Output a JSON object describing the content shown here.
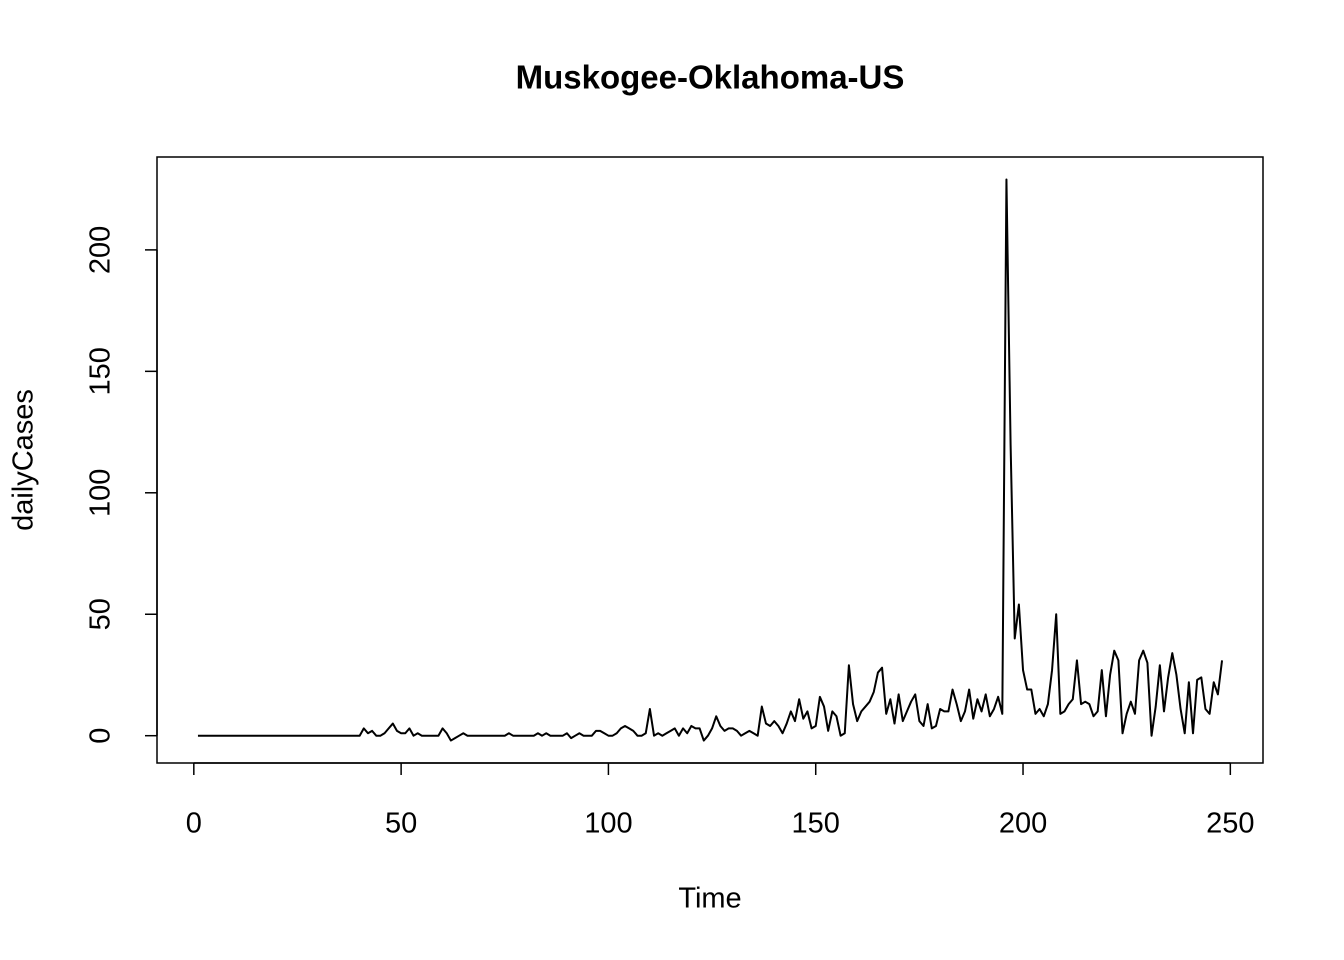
{
  "chart_data": {
    "type": "line",
    "title": "Muskogee-Oklahoma-US",
    "x_label": "Time",
    "y_label": "dailyCases",
    "x": [
      1,
      2,
      3,
      4,
      5,
      6,
      7,
      8,
      9,
      10,
      11,
      12,
      13,
      14,
      15,
      16,
      17,
      18,
      19,
      20,
      21,
      22,
      23,
      24,
      25,
      26,
      27,
      28,
      29,
      30,
      31,
      32,
      33,
      34,
      35,
      36,
      37,
      38,
      39,
      40,
      41,
      42,
      43,
      44,
      45,
      46,
      47,
      48,
      49,
      50,
      51,
      52,
      53,
      54,
      55,
      56,
      57,
      58,
      59,
      60,
      61,
      62,
      63,
      64,
      65,
      66,
      67,
      68,
      69,
      70,
      71,
      72,
      73,
      74,
      75,
      76,
      77,
      78,
      79,
      80,
      81,
      82,
      83,
      84,
      85,
      86,
      87,
      88,
      89,
      90,
      91,
      92,
      93,
      94,
      95,
      96,
      97,
      98,
      99,
      100,
      101,
      102,
      103,
      104,
      105,
      106,
      107,
      108,
      109,
      110,
      111,
      112,
      113,
      114,
      115,
      116,
      117,
      118,
      119,
      120,
      121,
      122,
      123,
      124,
      125,
      126,
      127,
      128,
      129,
      130,
      131,
      132,
      133,
      134,
      135,
      136,
      137,
      138,
      139,
      140,
      141,
      142,
      143,
      144,
      145,
      146,
      147,
      148,
      149,
      150,
      151,
      152,
      153,
      154,
      155,
      156,
      157,
      158,
      159,
      160,
      161,
      162,
      163,
      164,
      165,
      166,
      167,
      168,
      169,
      170,
      171,
      172,
      173,
      174,
      175,
      176,
      177,
      178,
      179,
      180,
      181,
      182,
      183,
      184,
      185,
      186,
      187,
      188,
      189,
      190,
      191,
      192,
      193,
      194,
      195,
      196,
      197,
      198,
      199,
      200,
      201,
      202,
      203,
      204,
      205,
      206,
      207,
      208,
      209,
      210,
      211,
      212,
      213,
      214,
      215,
      216,
      217,
      218,
      219,
      220,
      221,
      222,
      223,
      224,
      225,
      226,
      227,
      228,
      229,
      230,
      231,
      232,
      233,
      234,
      235,
      236,
      237,
      238,
      239,
      240,
      241,
      242,
      243,
      244,
      245,
      246,
      247,
      248
    ],
    "series": [
      {
        "name": "dailyCases",
        "color": "#000000",
        "values": [
          0,
          0,
          0,
          0,
          0,
          0,
          0,
          0,
          0,
          0,
          0,
          0,
          0,
          0,
          0,
          0,
          0,
          0,
          0,
          0,
          0,
          0,
          0,
          0,
          0,
          0,
          0,
          0,
          0,
          0,
          0,
          0,
          0,
          0,
          0,
          0,
          0,
          0,
          0,
          0,
          3,
          1,
          2,
          0,
          0,
          1,
          3,
          5,
          2,
          1,
          1,
          3,
          0,
          1,
          0,
          0,
          0,
          0,
          0,
          3,
          1,
          -2,
          -1,
          0,
          1,
          0,
          0,
          0,
          0,
          0,
          0,
          0,
          0,
          0,
          0,
          1,
          0,
          0,
          0,
          0,
          0,
          0,
          1,
          0,
          1,
          0,
          0,
          0,
          0,
          1,
          -1,
          0,
          1,
          0,
          0,
          0,
          2,
          2,
          1,
          0,
          0,
          1,
          3,
          4,
          3,
          2,
          0,
          0,
          1,
          11,
          0,
          1,
          0,
          1,
          2,
          3,
          0,
          3,
          1,
          4,
          3,
          3,
          -2,
          0,
          3,
          8,
          4,
          2,
          3,
          3,
          2,
          0,
          1,
          2,
          1,
          0,
          12,
          5,
          4,
          6,
          4,
          1,
          5,
          10,
          6,
          15,
          7,
          10,
          3,
          4,
          16,
          12,
          2,
          10,
          8,
          0,
          1,
          29,
          13,
          6,
          10,
          12,
          14,
          18,
          26,
          28,
          9,
          15,
          5,
          17,
          6,
          10,
          14,
          17,
          6,
          4,
          13,
          3,
          4,
          11,
          10,
          10,
          19,
          13,
          6,
          10,
          19,
          7,
          15,
          10,
          17,
          8,
          11,
          16,
          9,
          229,
          120,
          40,
          54,
          27,
          19,
          19,
          9,
          11,
          8,
          13,
          27,
          50,
          9,
          10,
          13,
          15,
          31,
          13,
          14,
          13,
          8,
          10,
          27,
          8,
          25,
          35,
          31,
          1,
          9,
          14,
          9,
          31,
          35,
          30,
          0,
          12,
          29,
          10,
          24,
          34,
          25,
          11,
          1,
          22,
          1,
          23,
          24,
          11,
          9,
          22,
          17,
          31
        ]
      }
    ],
    "xlim": [
      -8.88,
      257.88
    ],
    "ylim": [
      -11.24,
      238.24
    ],
    "xticks": [
      0,
      50,
      100,
      150,
      200,
      250
    ],
    "yticks": [
      0,
      50,
      100,
      150,
      200
    ]
  }
}
